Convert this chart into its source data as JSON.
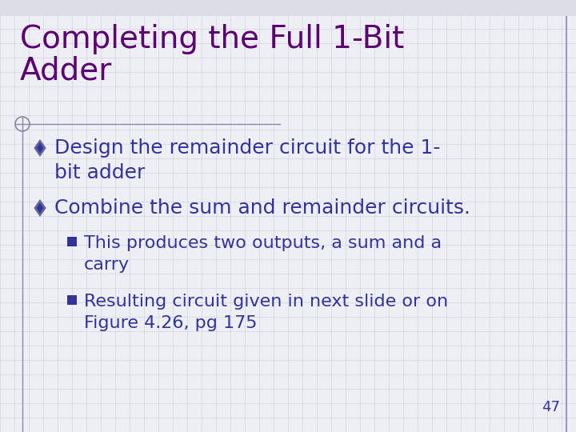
{
  "title_line1": "Completing the Full 1-Bit",
  "title_line2": "Adder",
  "title_color": "#5B0070",
  "title_fontsize": 28,
  "background_color": "#EEEEF5",
  "bullet1_text": "Design the remainder circuit for the 1-\nbit adder",
  "bullet2_text": "Combine the sum and remainder circuits.",
  "sub1_text": "This produces two outputs, a sum and a\ncarry",
  "sub2_text": "Resulting circuit given in next slide or on\nFigure 4.26, pg 175",
  "bullet_color": "#333399",
  "bullet_diamond_fill": "#333399",
  "bullet_diamond_outline": "#666699",
  "bullet_square_color": "#333399",
  "page_number": "47",
  "grid_color": "#CCCCDD",
  "border_right_color": "#9999BB",
  "line_color": "#8888AA",
  "bullet_fontsize": 18,
  "sub_fontsize": 16
}
